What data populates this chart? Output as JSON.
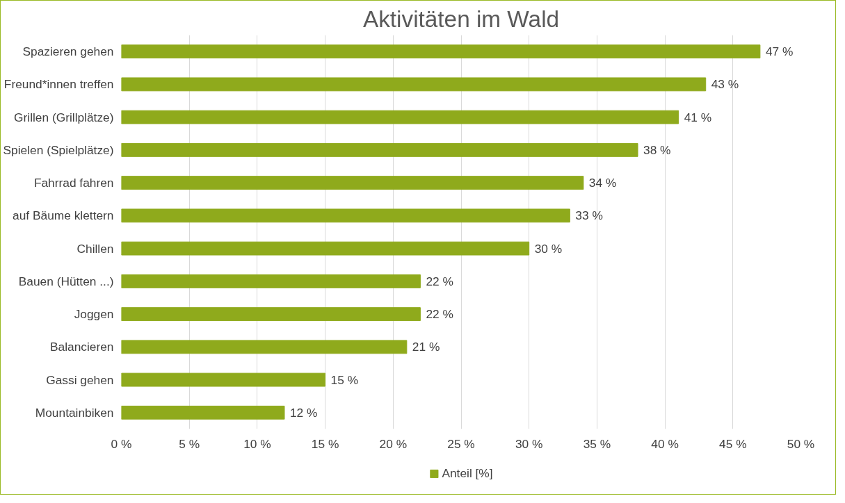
{
  "chart_data": {
    "type": "bar",
    "orientation": "horizontal",
    "title": "Aktivitäten im Wald",
    "categories": [
      "Spazieren gehen",
      "Freund*innen treffen",
      "Grillen (Grillplätze)",
      "Spielen (Spielplätze)",
      "Fahrrad fahren",
      "auf Bäume klettern",
      "Chillen",
      "Bauen (Hütten ...)",
      "Joggen",
      "Balancieren",
      "Gassi gehen",
      "Mountainbiken"
    ],
    "series": [
      {
        "name": "Anteil [%]",
        "color": "#8faa1c",
        "values": [
          47,
          43,
          41,
          38,
          34,
          33,
          30,
          22,
          22,
          21,
          15,
          12
        ],
        "value_labels": [
          "47 %",
          "43 %",
          "41 %",
          "38 %",
          "34 %",
          "33 %",
          "30 %",
          "22 %",
          "22 %",
          "21 %",
          "15 %",
          "12 %"
        ]
      }
    ],
    "xlim": [
      0,
      50
    ],
    "xticks": [
      {
        "value": 0,
        "label": "0 %"
      },
      {
        "value": 5,
        "label": "5 %"
      },
      {
        "value": 10,
        "label": "10 %"
      },
      {
        "value": 15,
        "label": "15 %"
      },
      {
        "value": 20,
        "label": "20 %"
      },
      {
        "value": 25,
        "label": "25 %"
      },
      {
        "value": 30,
        "label": "30 %"
      },
      {
        "value": 35,
        "label": "35 %"
      },
      {
        "value": 40,
        "label": "40 %"
      },
      {
        "value": 45,
        "label": "45 %"
      },
      {
        "value": 50,
        "label": "50 %"
      }
    ],
    "grid": "x",
    "legend": "bottom"
  }
}
